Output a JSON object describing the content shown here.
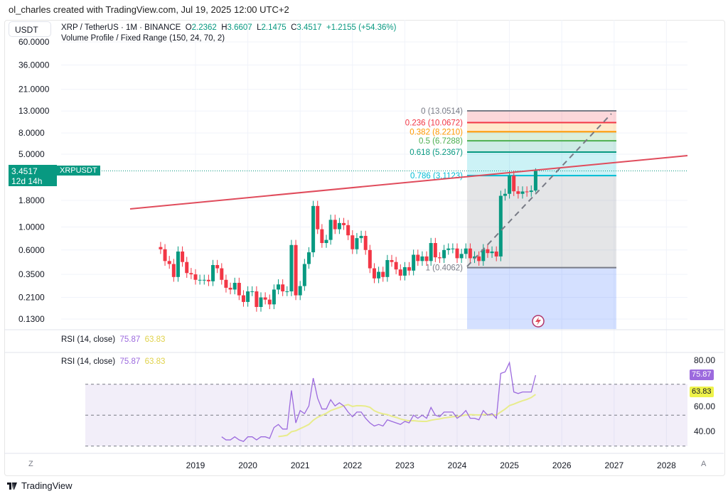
{
  "credit": "ol_charles created with TradingView.com, Jul 19, 2025 12:00 UTC+2",
  "unit": "USDT",
  "legend": {
    "symbol": "XRP / TetherUS · 1M · BINANCE",
    "o_label": "O",
    "o": "2.2362",
    "h_label": "H",
    "h": "3.6607",
    "l_label": "L",
    "l": "2.1475",
    "c_label": "C",
    "c": "3.4517",
    "change": "+1.2155 (+54.36%)",
    "indicator": "Volume Profile / Fixed Range (150, 24, 70, 2)"
  },
  "price_label": {
    "value": "3.4517",
    "countdown": "12d 14h",
    "ticker": "XRPUSDT"
  },
  "rsi_legend": {
    "name": "RSI (14, close)",
    "rsi": "75.87",
    "ma": "63.83"
  },
  "rsi_badges": {
    "rsi": "75.87",
    "ma": "63.83"
  },
  "rsi_ticks": [
    "80.00",
    "60.00",
    "40.00"
  ],
  "axis_buttons": {
    "left": "Z",
    "right": "A"
  },
  "footer": "TradingView",
  "colors": {
    "up": "#089981",
    "down": "#f23645",
    "rsi": "#9c6ade",
    "rsi_ma": "#e8ec8c",
    "trendline": "#e04c5c"
  },
  "chart_data": {
    "type": "candlestick",
    "scale": "log",
    "interval": "1M",
    "y_ticks": [
      "60.0000",
      "36.0000",
      "21.0000",
      "13.0000",
      "8.0000",
      "5.0000",
      "1.8000",
      "1.0000",
      "0.6000",
      "0.3500",
      "0.2100",
      "0.1300"
    ],
    "x_ticks": [
      "2019",
      "2020",
      "2021",
      "2022",
      "2023",
      "2024",
      "2025",
      "2026",
      "2027",
      "2028"
    ],
    "start_month": "2018-05",
    "closes": [
      0.61,
      0.47,
      0.44,
      0.33,
      0.58,
      0.46,
      0.36,
      0.35,
      0.31,
      0.31,
      0.31,
      0.3,
      0.43,
      0.4,
      0.31,
      0.26,
      0.25,
      0.29,
      0.22,
      0.19,
      0.24,
      0.24,
      0.17,
      0.21,
      0.2,
      0.18,
      0.25,
      0.28,
      0.24,
      0.24,
      0.67,
      0.22,
      0.27,
      0.44,
      0.57,
      1.59,
      0.95,
      0.7,
      0.75,
      1.17,
      0.95,
      1.09,
      1.04,
      0.83,
      0.61,
      0.78,
      0.82,
      0.6,
      0.4,
      0.32,
      0.37,
      0.33,
      0.48,
      0.46,
      0.39,
      0.34,
      0.41,
      0.38,
      0.54,
      0.47,
      0.52,
      0.47,
      0.7,
      0.51,
      0.5,
      0.6,
      0.62,
      0.62,
      0.5,
      0.55,
      0.62,
      0.5,
      0.52,
      0.47,
      0.61,
      0.56,
      0.58,
      0.52,
      1.99,
      2.08,
      3.11,
      2.2,
      2.08,
      2.19,
      2.17,
      2.2362,
      3.4517
    ],
    "last_candle": {
      "open": 2.2362,
      "high": 3.6607,
      "low": 2.1475,
      "close": 3.4517
    },
    "fib_levels": [
      {
        "label": "0 (13.0514)",
        "value": 13.0514,
        "color": "#787b86"
      },
      {
        "label": "0.236 (10.0672)",
        "value": 10.0672,
        "color": "#f23645"
      },
      {
        "label": "0.382 (8.2210)",
        "value": 8.221,
        "color": "#ff9800"
      },
      {
        "label": "0.5 (6.7288)",
        "value": 6.7288,
        "color": "#4caf50"
      },
      {
        "label": "0.618 (5.2367)",
        "value": 5.2367,
        "color": "#089981"
      },
      {
        "label": "0.786 (3.1123)",
        "value": 3.1123,
        "color": "#00bcd4"
      },
      {
        "label": "1 (0.4062)",
        "value": 0.4062,
        "color": "#787b86"
      }
    ],
    "rsi": {
      "start_month": "2019-07",
      "length": 14,
      "overbought": 70,
      "middle": 50,
      "oversold": 30,
      "values": [
        36,
        34,
        34,
        36,
        34,
        33,
        36,
        36,
        34,
        36,
        36,
        35,
        42,
        44,
        41,
        41,
        66,
        45,
        53,
        51,
        56,
        74,
        61,
        54,
        54,
        60,
        56,
        58,
        56,
        52,
        49,
        52,
        52,
        48,
        45,
        43,
        44,
        43,
        47,
        46,
        45,
        44,
        46,
        45,
        50,
        48,
        50,
        48,
        55,
        50,
        49,
        52,
        52,
        52,
        48,
        50,
        53,
        48,
        48,
        47,
        53,
        50,
        51,
        48,
        77,
        78,
        84,
        65,
        64,
        65,
        65,
        65,
        75.87
      ]
    }
  }
}
